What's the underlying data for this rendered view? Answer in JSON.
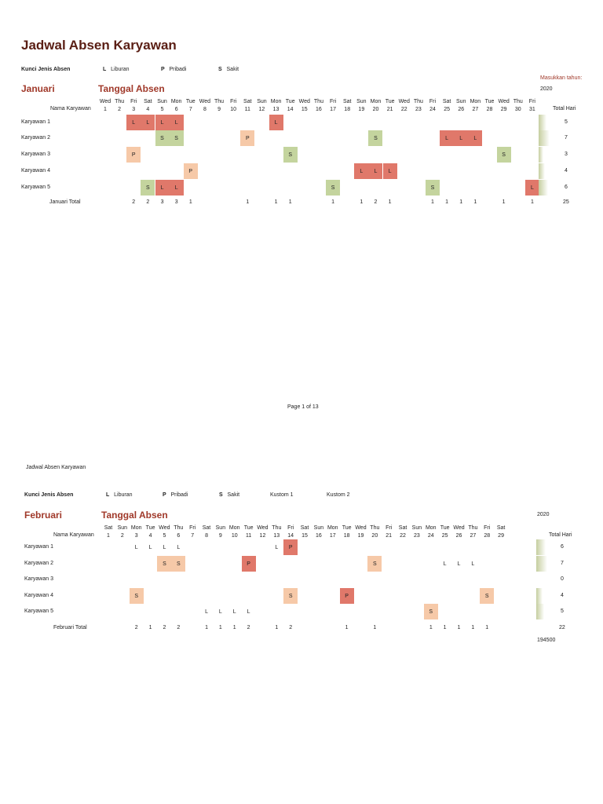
{
  "document": {
    "title": "Jadwal Absen Karyawan",
    "footer_page": "Page 1 of 13",
    "page2_header": "Jadwal Absen Karyawan",
    "colors": {
      "L": "#e0786a",
      "S": "#c4d49e",
      "P": "#f6c9a8",
      "title": "#5a1e14",
      "month": "#a0392a",
      "bar": "#c5ce9f"
    }
  },
  "legend1": {
    "label": "Kunci Jenis Absen",
    "items": [
      {
        "code": "L",
        "name": "Liburan"
      },
      {
        "code": "P",
        "name": "Pribadi"
      },
      {
        "code": "S",
        "name": "Sakit"
      }
    ]
  },
  "legend2": {
    "label": "Kunci Jenis Absen",
    "items": [
      {
        "code": "L",
        "name": "Liburan"
      },
      {
        "code": "P",
        "name": "Pribadi"
      },
      {
        "code": "S",
        "name": "Sakit"
      }
    ],
    "custom1": "Kustom 1",
    "custom2": "Kustom 2"
  },
  "months": [
    {
      "name": "Januari",
      "subtitle": "Tanggal Absen",
      "year_prompt": "Masukkan tahun:",
      "year": "2020",
      "name_header": "Nama Karyawan",
      "total_header": "Total Hari",
      "total_label": "Januari Total",
      "weekdays": [
        "Wed",
        "Thu",
        "Fri",
        "Sat",
        "Sun",
        "Mon",
        "Tue",
        "Wed",
        "Thu",
        "Fri",
        "Sat",
        "Sun",
        "Mon",
        "Tue",
        "Wed",
        "Thu",
        "Fri",
        "Sat",
        "Sun",
        "Mon",
        "Tue",
        "Wed",
        "Thu",
        "Fri",
        "Sat",
        "Sun",
        "Mon",
        "Tue",
        "Wed",
        "Thu",
        "Fri"
      ],
      "employees": [
        {
          "name": "Karyawan 1",
          "total": "5",
          "entries": [
            [
              3,
              "L",
              "L"
            ],
            [
              4,
              "L",
              "L"
            ],
            [
              5,
              "L",
              "L"
            ],
            [
              6,
              "L",
              "L"
            ],
            [
              13,
              "L",
              "L"
            ]
          ]
        },
        {
          "name": "Karyawan 2",
          "total": "7",
          "entries": [
            [
              5,
              "S",
              "S"
            ],
            [
              6,
              "S",
              "S"
            ],
            [
              11,
              "P",
              "P"
            ],
            [
              20,
              "S",
              "S"
            ],
            [
              25,
              "L",
              "L"
            ],
            [
              26,
              "L",
              "L"
            ],
            [
              27,
              "L",
              "L"
            ]
          ]
        },
        {
          "name": "Karyawan 3",
          "total": "3",
          "entries": [
            [
              3,
              "P",
              "P"
            ],
            [
              14,
              "S",
              "S"
            ],
            [
              29,
              "S",
              "S"
            ]
          ]
        },
        {
          "name": "Karyawan 4",
          "total": "4",
          "entries": [
            [
              7,
              "P",
              "P"
            ],
            [
              19,
              "L",
              "L"
            ],
            [
              20,
              "L",
              "L"
            ],
            [
              21,
              "L",
              "L"
            ]
          ]
        },
        {
          "name": "Karyawan 5",
          "total": "6",
          "entries": [
            [
              4,
              "S",
              "S"
            ],
            [
              5,
              "L",
              "L"
            ],
            [
              6,
              "L",
              "L"
            ],
            [
              17,
              "S",
              "S"
            ],
            [
              24,
              "S",
              "S"
            ],
            [
              31,
              "L",
              "L"
            ]
          ]
        }
      ],
      "day_totals": {
        "3": "2",
        "4": "2",
        "5": "3",
        "6": "3",
        "7": "1",
        "11": "1",
        "13": "1",
        "14": "1",
        "17": "1",
        "19": "1",
        "20": "2",
        "21": "1",
        "24": "1",
        "25": "1",
        "26": "1",
        "27": "1",
        "29": "1",
        "31": "1"
      },
      "grand_total": "25"
    },
    {
      "name": "Februari",
      "subtitle": "Tanggal Absen",
      "year": "2020",
      "name_header": "Nama Karyawan",
      "total_header": "Total Hari",
      "total_label": "Februari Total",
      "weekdays": [
        "Sat",
        "Sun",
        "Mon",
        "Tue",
        "Wed",
        "Thu",
        "Fri",
        "Sat",
        "Sun",
        "Mon",
        "Tue",
        "Wed",
        "Thu",
        "Fri",
        "Sat",
        "Sun",
        "Mon",
        "Tue",
        "Wed",
        "Thu",
        "Fri",
        "Sat",
        "Sun",
        "Mon",
        "Tue",
        "Wed",
        "Thu",
        "Fri",
        "Sat"
      ],
      "employees": [
        {
          "name": "Karyawan 1",
          "total": "6",
          "entries": [
            [
              3,
              "L",
              ""
            ],
            [
              4,
              "L",
              ""
            ],
            [
              5,
              "L",
              ""
            ],
            [
              6,
              "L",
              ""
            ],
            [
              13,
              "L",
              ""
            ],
            [
              14,
              "P",
              "L"
            ]
          ]
        },
        {
          "name": "Karyawan 2",
          "total": "7",
          "entries": [
            [
              5,
              "S",
              "P"
            ],
            [
              6,
              "S",
              "P"
            ],
            [
              11,
              "P",
              "L"
            ],
            [
              20,
              "S",
              "P"
            ],
            [
              25,
              "L",
              ""
            ],
            [
              26,
              "L",
              ""
            ],
            [
              27,
              "L",
              ""
            ]
          ]
        },
        {
          "name": "Karyawan 3",
          "total": "0",
          "entries": []
        },
        {
          "name": "Karyawan 4",
          "total": "4",
          "entries": [
            [
              3,
              "S",
              "P"
            ],
            [
              14,
              "S",
              "P"
            ],
            [
              18,
              "P",
              "L"
            ],
            [
              28,
              "S",
              "P"
            ]
          ]
        },
        {
          "name": "Karyawan 5",
          "total": "5",
          "entries": [
            [
              8,
              "L",
              ""
            ],
            [
              9,
              "L",
              ""
            ],
            [
              10,
              "L",
              ""
            ],
            [
              11,
              "L",
              ""
            ],
            [
              24,
              "S",
              "P"
            ]
          ]
        }
      ],
      "day_totals": {
        "3": "2",
        "4": "1",
        "5": "2",
        "6": "2",
        "8": "1",
        "9": "1",
        "10": "1",
        "11": "2",
        "13": "1",
        "14": "2",
        "18": "1",
        "20": "1",
        "24": "1",
        "25": "1",
        "26": "1",
        "27": "1",
        "28": "1"
      },
      "grand_total": "22",
      "extra_value": "194500"
    }
  ]
}
